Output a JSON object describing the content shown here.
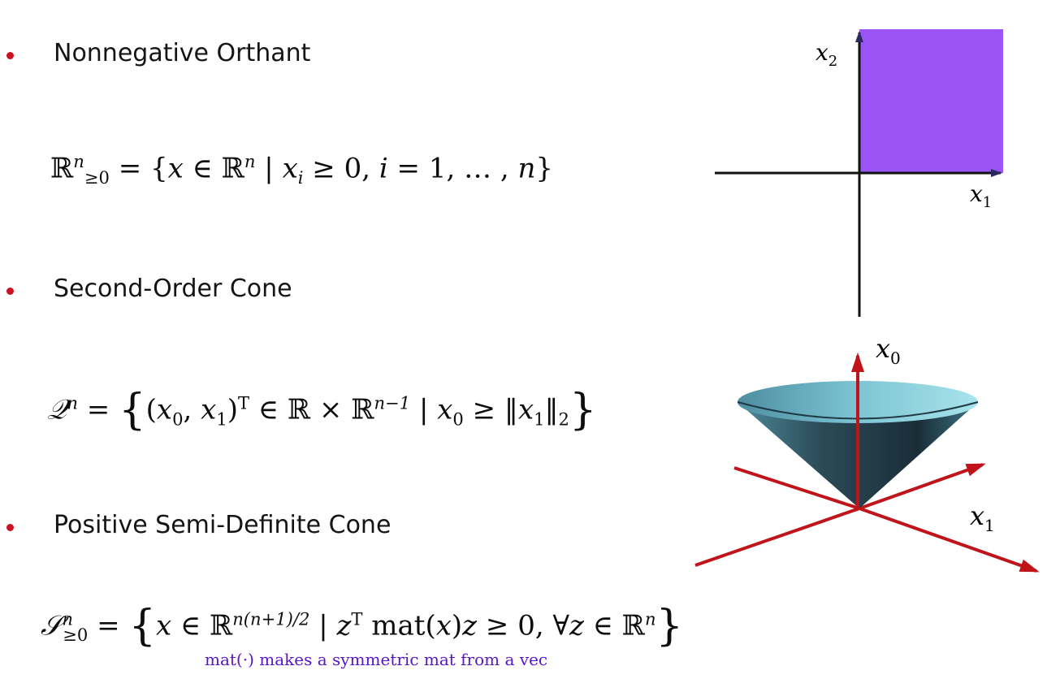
{
  "colors": {
    "bullet": "#cc1122",
    "orthant_fill": "#9b55f7",
    "orthant_axis": "#2a2a60",
    "cone_axes": "#c0141b",
    "note": "#5a14c8"
  },
  "sections": [
    {
      "heading": "Nonnegative Orthant",
      "formula": {
        "set": "ℝ",
        "set_sup": "n",
        "set_sub": "≥0",
        "eq": " = {",
        "var": "x",
        "in_space": " ∈ ℝ",
        "space_sup": "n",
        "bar": " | ",
        "cond_var": "x",
        "cond_sub": "i",
        "cond_rest": " ≥ 0,  ",
        "index": "i",
        "range": " = 1, … , ",
        "n_end": "n",
        "close": "}"
      }
    },
    {
      "heading": "Second-Order Cone",
      "formula": {
        "set": "𝒬",
        "set_sup": "n",
        "eq": " = ",
        "open": "{",
        "tuple_open": "(",
        "x0": "x",
        "x0_sub": "0",
        "comma": ", ",
        "x1": "x",
        "x1_sub": "1",
        "tuple_close": ")",
        "transpose": "T",
        "in_space": " ∈ ℝ × ℝ",
        "space_sup": "n−1",
        "bar": " | ",
        "lhs": "x",
        "lhs_sub": "0",
        "geq": " ≥ ‖",
        "rhs": "x",
        "rhs_sub": "1",
        "norm_close": "‖",
        "norm_sub": "2",
        "close": "}"
      }
    },
    {
      "heading": "Positive Semi-Definite Cone",
      "formula": {
        "set": "𝒮",
        "set_sup": "n",
        "set_sub": "≥0",
        "eq": " = ",
        "open": "{",
        "var": "x",
        "in_space": " ∈ ℝ",
        "space_sup": "n(n+1)/2",
        "bar": " | ",
        "z": "z",
        "transpose": "T",
        "mat": " mat(",
        "matvar": "x",
        "matclose": ")",
        "z2": "z",
        "cond": " ≥ 0, ∀",
        "z3": "z",
        "in2": " ∈ ℝ",
        "space2_sup": "n",
        "close": "}"
      },
      "note": "mat(·) makes a symmetric mat from a vec"
    }
  ],
  "orthant_figure": {
    "y_label": "x",
    "y_label_sub": "2",
    "x_label": "x",
    "x_label_sub": "1"
  },
  "cone_figure": {
    "z_label": "x",
    "z_label_sub": "0",
    "x_label": "x",
    "x_label_sub": "1"
  }
}
